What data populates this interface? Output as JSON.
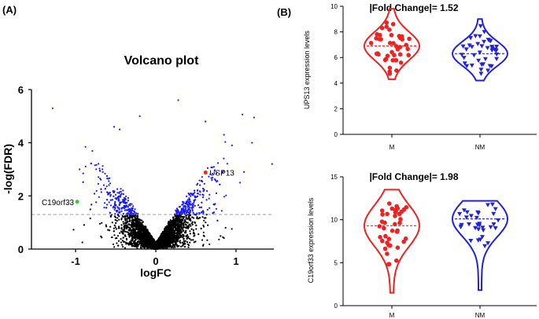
{
  "panel_labels": {
    "a": "(A)",
    "b": "(B)"
  },
  "chart_data": [
    {
      "type": "scatter",
      "title": "Volcano plot",
      "xlabel": "logFC",
      "ylabel": "-log(FDR)",
      "xlim": [
        -1.55,
        1.5
      ],
      "ylim": [
        0,
        6
      ],
      "xticks": [
        -1,
        0,
        1
      ],
      "yticks": [
        0,
        2,
        4,
        6
      ],
      "threshold": 1.3,
      "colors": {
        "significant": "#1a1aff",
        "nonsignificant": "#000000",
        "threshold": "#808080"
      },
      "highlights": [
        {
          "name": "USP13",
          "x": 0.62,
          "y": 2.88,
          "color": "#ff2020"
        },
        {
          "name": "C19orf33",
          "x": -0.98,
          "y": 1.78,
          "color": "#33cc33"
        }
      ]
    },
    {
      "type": "violin",
      "title": "|Fold Change|= 1.52",
      "ylabel": "UPS13 expression levels",
      "categories": [
        "M",
        "NM"
      ],
      "ylim": [
        0,
        10
      ],
      "yticks": [
        0,
        2,
        4,
        6,
        8,
        10
      ],
      "series": [
        {
          "name": "M",
          "color": "#ee2222",
          "marker": "circle",
          "range": [
            4.3,
            9.8
          ],
          "median": 6.9
        },
        {
          "name": "NM",
          "color": "#2222dd",
          "marker": "triangle",
          "range": [
            4.2,
            9.0
          ],
          "median": 6.3
        }
      ]
    },
    {
      "type": "violin",
      "title": "|Fold Change|= 1.98",
      "ylabel": "C19orf33 expression levels",
      "categories": [
        "M",
        "NM"
      ],
      "ylim": [
        0,
        15
      ],
      "yticks": [
        0,
        5,
        10,
        15
      ],
      "series": [
        {
          "name": "M",
          "color": "#ee2222",
          "marker": "circle",
          "range": [
            1.5,
            13.5
          ],
          "median": 9.3
        },
        {
          "name": "NM",
          "color": "#2222dd",
          "marker": "triangle",
          "range": [
            1.8,
            12.2
          ],
          "median": 10.1
        }
      ]
    }
  ]
}
